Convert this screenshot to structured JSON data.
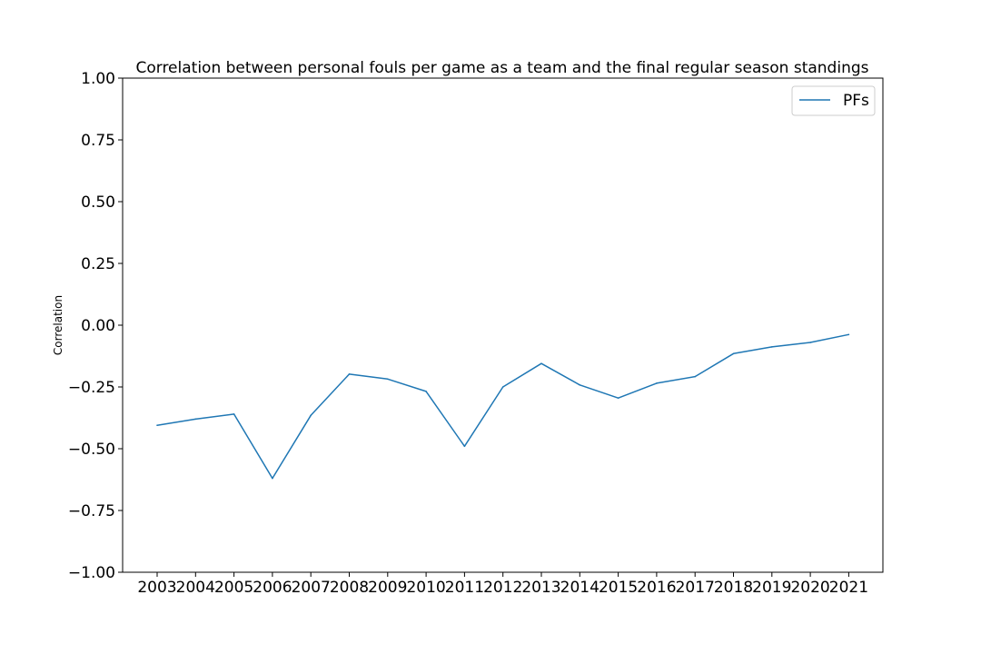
{
  "chart_data": {
    "type": "line",
    "title": "Correlation between personal fouls per game as a team and the final regular season standings",
    "xlabel": "",
    "ylabel": "Correlation",
    "categories": [
      "2003",
      "2004",
      "2005",
      "2006",
      "2007",
      "2008",
      "2009",
      "2010",
      "2011",
      "2012",
      "2013",
      "2014",
      "2015",
      "2016",
      "2017",
      "2018",
      "2019",
      "2020",
      "2021"
    ],
    "series": [
      {
        "name": "PFs",
        "color": "#1f77b4",
        "values": [
          -0.405,
          -0.38,
          -0.36,
          -0.62,
          -0.365,
          -0.198,
          -0.218,
          -0.268,
          -0.49,
          -0.25,
          -0.155,
          -0.242,
          -0.295,
          -0.235,
          -0.208,
          -0.115,
          -0.088,
          -0.07,
          -0.038
        ]
      }
    ],
    "ylim": [
      -1.0,
      1.0
    ],
    "yticks": [
      "−1.00",
      "−0.75",
      "−0.50",
      "−0.25",
      "0.00",
      "0.25",
      "0.50",
      "0.75",
      "1.00"
    ],
    "ytick_values": [
      -1.0,
      -0.75,
      -0.5,
      -0.25,
      0.0,
      0.25,
      0.5,
      0.75,
      1.0
    ],
    "grid": false,
    "legend_position": "top-right"
  }
}
